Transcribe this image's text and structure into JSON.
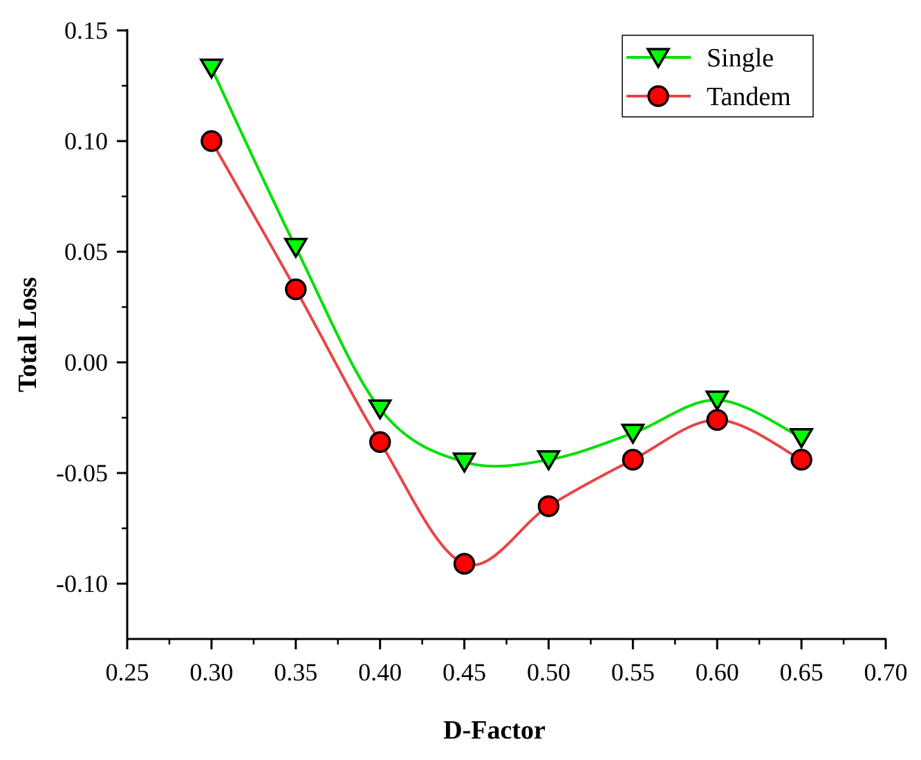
{
  "chart_data": {
    "type": "line",
    "title": "",
    "xlabel": "D-Factor",
    "ylabel": "Total Loss",
    "xlim": [
      0.25,
      0.7
    ],
    "ylim": [
      -0.125,
      0.15
    ],
    "xticks": [
      0.25,
      0.3,
      0.35,
      0.4,
      0.45,
      0.5,
      0.55,
      0.6,
      0.65,
      0.7
    ],
    "xtick_labels": [
      "0.25",
      "0.30",
      "0.35",
      "0.40",
      "0.45",
      "0.50",
      "0.55",
      "0.60",
      "0.65",
      "0.70"
    ],
    "yticks": [
      0.15,
      0.1,
      0.05,
      0.0,
      -0.05,
      -0.1
    ],
    "ytick_labels": [
      "0.15",
      "0.10",
      "0.05",
      "0.00",
      "-0.05",
      "-0.10"
    ],
    "grid": false,
    "legend_position": "top-right",
    "x": [
      0.3,
      0.35,
      0.4,
      0.45,
      0.5,
      0.55,
      0.6,
      0.65
    ],
    "series": [
      {
        "name": "Single",
        "marker": "triangle-down",
        "line_color": "#00e000",
        "marker_color": "#00ff00",
        "values": [
          0.133,
          0.052,
          -0.021,
          -0.045,
          -0.044,
          -0.032,
          -0.017,
          -0.034
        ]
      },
      {
        "name": "Tandem",
        "marker": "circle",
        "line_color": "#e84545",
        "marker_color": "#ff0000",
        "values": [
          0.1,
          0.033,
          -0.036,
          -0.091,
          -0.065,
          -0.044,
          -0.026,
          -0.044
        ]
      }
    ]
  }
}
